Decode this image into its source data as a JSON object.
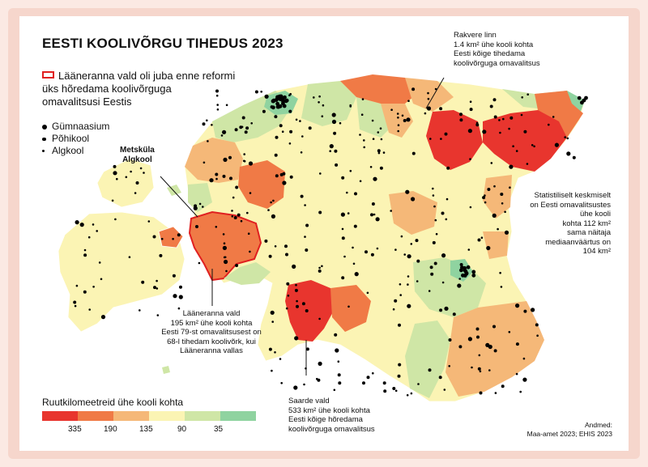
{
  "title": "EESTI KOOLIVÕRGU TIHEDUS 2023",
  "reform_legend": {
    "lines": [
      "Lääneranna vald oli juba enne reformi",
      "üks hõredama koolivõrguga",
      "omavalitsusi Eestis"
    ],
    "box_color": "#e02020"
  },
  "school_types": [
    {
      "label": "Gümnaasium",
      "size": "large"
    },
    {
      "label": "Põhikool",
      "size": "medium"
    },
    {
      "label": "Algkool",
      "size": "small"
    }
  ],
  "annotations": {
    "metskula": [
      "Metsküla",
      "Algkool"
    ],
    "rakvere": [
      "Rakvere linn",
      "1.4 km² ühe kooli kohta",
      "Eesti kõige tihedama",
      "koolivõrguga omavalitsus"
    ],
    "average": [
      "Statistiliselt keskmiselt",
      "on Eesti omavalitsustes",
      "ühe kooli",
      "kohta 112 km²",
      "sama näitaja",
      "mediaanväärtus on",
      "104 km²"
    ],
    "laaneranna": [
      "Lääneranna vald",
      "195 km² ühe kooli kohta",
      "Eesti 79-st omavalitsusest on",
      "68-l tihedam koolivõrk, kui",
      "Lääneranna vallas"
    ],
    "saarde": [
      "Saarde vald",
      "533 km² ühe kooli kohta",
      "Eesti kõige hõredama",
      "koolivõrguga omavalitsus"
    ]
  },
  "scale": {
    "title": "Ruutkilomeetreid ühe kooli kohta",
    "colors": [
      "#e8352e",
      "#f07a46",
      "#f5b878",
      "#fbf4b4",
      "#cfe6a6",
      "#8fd3a0"
    ],
    "labels": [
      "335",
      "190",
      "135",
      "90",
      "35"
    ]
  },
  "source": [
    "Andmed:",
    "Maa-amet 2023; EHIS 2023"
  ]
}
